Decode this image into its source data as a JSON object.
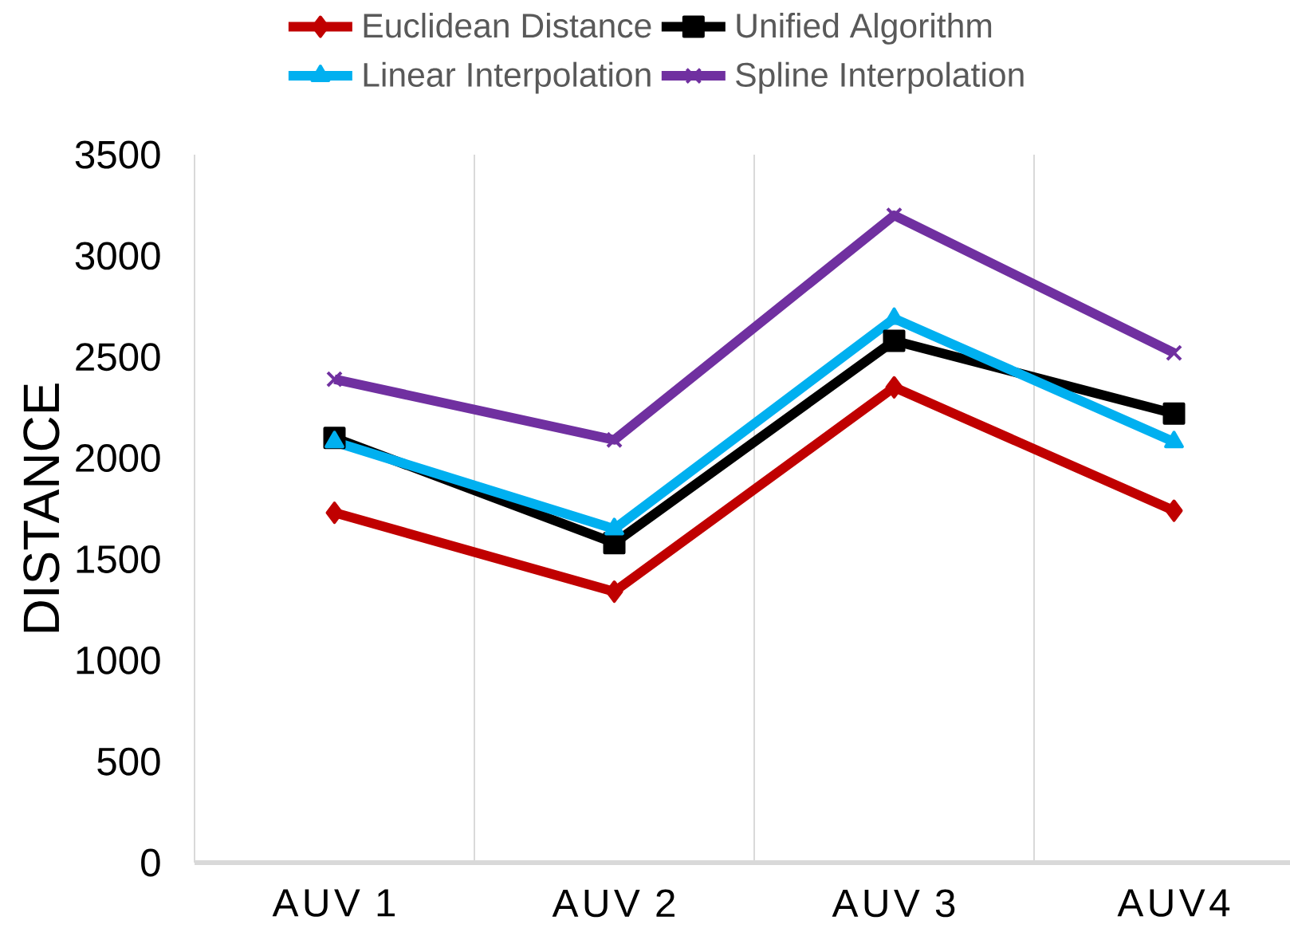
{
  "chart_data": {
    "type": "line",
    "ylabel": "DISTANCE",
    "categories": [
      "AUV 1",
      "AUV 2",
      "AUV 3",
      "AUV4"
    ],
    "series": [
      {
        "name": "Euclidean Distance",
        "color": "#c00000",
        "marker": "diamond",
        "values": [
          1730,
          1340,
          2350,
          1740
        ]
      },
      {
        "name": "Unified Algorithm",
        "color": "#000000",
        "marker": "square",
        "values": [
          2100,
          1580,
          2580,
          2220
        ]
      },
      {
        "name": "Linear Interpolation",
        "color": "#00b0f0",
        "marker": "triangle",
        "values": [
          2080,
          1650,
          2690,
          2080
        ]
      },
      {
        "name": "Spline Interpolation",
        "color": "#7030a0",
        "marker": "cross",
        "values": [
          2390,
          2090,
          3200,
          2520
        ]
      }
    ],
    "ylim": [
      0,
      3500
    ],
    "yticks": [
      0,
      500,
      1000,
      1500,
      2000,
      2500,
      3000,
      3500
    ],
    "grid": "x",
    "legend": "top"
  }
}
